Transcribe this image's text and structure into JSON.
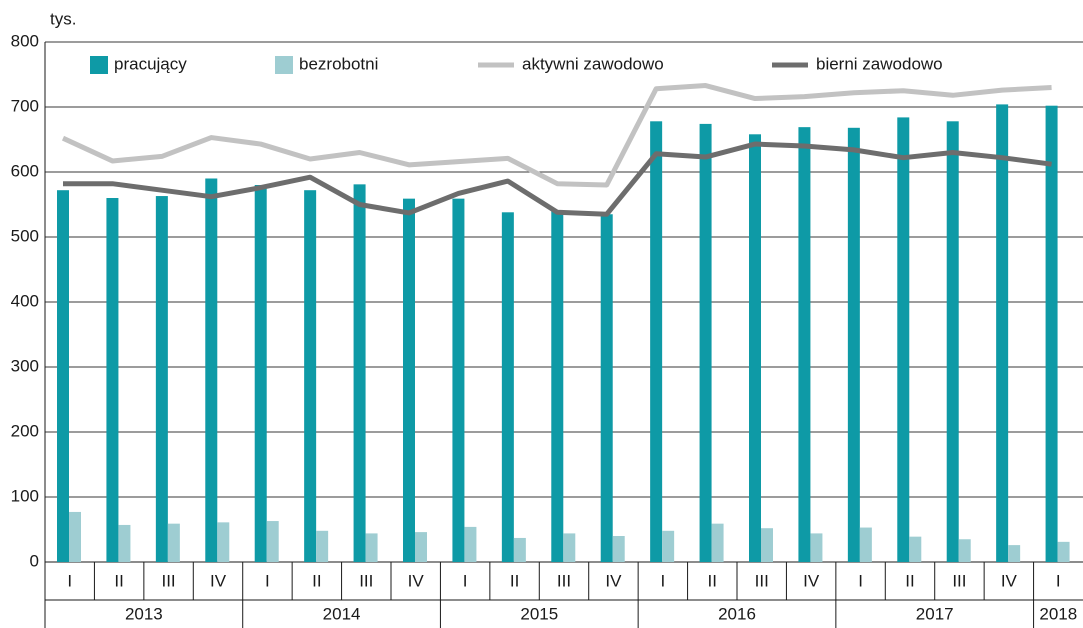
{
  "chart_data": {
    "type": "bar_line",
    "y_unit": "tys.",
    "categories": [
      "I",
      "II",
      "III",
      "IV",
      "I",
      "II",
      "III",
      "IV",
      "I",
      "II",
      "III",
      "IV",
      "I",
      "II",
      "III",
      "IV",
      "I",
      "II",
      "III",
      "IV",
      "I"
    ],
    "years": [
      "2013",
      "2014",
      "2015",
      "2016",
      "2017",
      "2018"
    ],
    "series": [
      {
        "name": "pracujący",
        "kind": "bar",
        "color": "#0e9aa6",
        "values": [
          572,
          560,
          563,
          590,
          580,
          572,
          581,
          559,
          559,
          538,
          540,
          535,
          678,
          674,
          658,
          669,
          668,
          684,
          678,
          704,
          702
        ]
      },
      {
        "name": "bezrobotni",
        "kind": "bar",
        "color": "#9ecdd2",
        "values": [
          77,
          57,
          59,
          61,
          63,
          48,
          44,
          46,
          54,
          37,
          44,
          40,
          48,
          59,
          52,
          44,
          53,
          39,
          35,
          26,
          31
        ]
      },
      {
        "name": "aktywni zawodowo",
        "kind": "line",
        "color": "#c2c2c2",
        "values": [
          652,
          617,
          624,
          653,
          643,
          620,
          630,
          611,
          616,
          621,
          582,
          580,
          728,
          733,
          713,
          716,
          722,
          725,
          718,
          726,
          730
        ]
      },
      {
        "name": "bierni zawodowo",
        "kind": "line",
        "color": "#6d6d6d",
        "values": [
          582,
          582,
          572,
          562,
          576,
          592,
          550,
          537,
          567,
          586,
          538,
          535,
          628,
          623,
          643,
          640,
          634,
          622,
          630,
          622,
          612
        ]
      }
    ],
    "ylim": [
      0,
      800
    ],
    "yticks": [
      0,
      100,
      200,
      300,
      400,
      500,
      600,
      700,
      800
    ],
    "grid": true
  }
}
